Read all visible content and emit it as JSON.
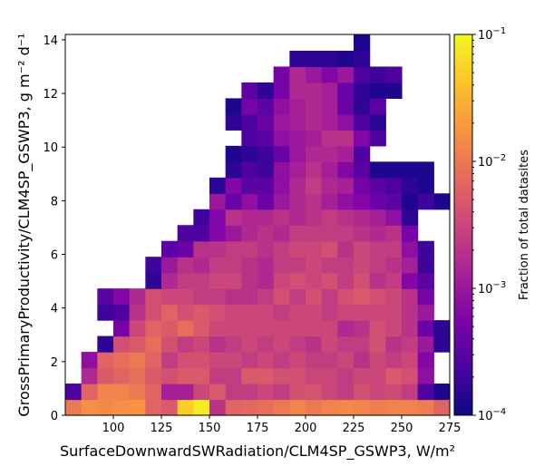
{
  "chart_data": {
    "type": "heatmap",
    "xlabel": "SurfaceDownwardSWRadiation/CLM4SP_GSWP3,  W/m²",
    "ylabel": "GrossPrimaryProductivity/CLM4SP_GSWP3,  g m⁻² d⁻¹",
    "xlim": [
      75,
      275
    ],
    "ylim": [
      0,
      14.2
    ],
    "x_ticks": [
      "100",
      "125",
      "150",
      "175",
      "200",
      "225",
      "250",
      "275"
    ],
    "y_ticks": [
      "0",
      "2",
      "4",
      "6",
      "8",
      "10",
      "12",
      "14"
    ],
    "bin_width_x": 8.333,
    "bin_width_y": 0.591,
    "n_x_bins": 24,
    "n_y_bins": 24,
    "colormap": "plasma",
    "color_scale": "log",
    "color_range": [
      0.0001,
      0.1
    ],
    "colorbar": {
      "label": "Fraction of total datasites",
      "tick_labels": [
        {
          "base": "10",
          "exp": "−4"
        },
        {
          "base": "10",
          "exp": "−3"
        },
        {
          "base": "10",
          "exp": "−2"
        },
        {
          "base": "10",
          "exp": "−1"
        }
      ]
    },
    "grid": false,
    "note_values": "log10 of fraction per bin, indexed [y_bin][x_bin]; null = empty bin",
    "values": [
      [
        -2.0,
        -1.8,
        -1.85,
        -1.8,
        -1.75,
        -2.2,
        -2.3,
        -1.3,
        -1.1,
        -2.7,
        -2.2,
        -2.15,
        -2.1,
        -2.0,
        -1.9,
        -2.0,
        -1.9,
        -1.85,
        -1.9,
        -1.95,
        -1.9,
        -1.9,
        -1.95,
        -2.2
      ],
      [
        -3.6,
        -2.2,
        -1.9,
        -1.9,
        -2.0,
        -2.2,
        -2.9,
        -2.9,
        -2.5,
        -2.3,
        -2.6,
        -2.6,
        -2.5,
        -2.6,
        -2.4,
        -2.35,
        -2.5,
        -2.6,
        -2.4,
        -2.5,
        -2.45,
        -2.6,
        -3.6,
        -3.9
      ],
      [
        null,
        -2.8,
        -2.3,
        -2.2,
        -2.1,
        -2.3,
        -2.4,
        -2.3,
        -2.3,
        -2.6,
        -2.6,
        -2.3,
        -2.3,
        -2.4,
        -2.4,
        -2.5,
        -2.5,
        -2.6,
        -2.5,
        -2.5,
        -2.3,
        -2.4,
        -3.1,
        null
      ],
      [
        null,
        -3.1,
        -2.2,
        -2.1,
        -2.0,
        -2.2,
        -2.6,
        -2.4,
        -2.4,
        -2.5,
        -2.5,
        -2.6,
        -2.5,
        -2.6,
        -2.5,
        -2.6,
        -2.6,
        -2.5,
        -2.7,
        -2.5,
        -2.6,
        -2.5,
        -3.2,
        null
      ],
      [
        null,
        null,
        -3.8,
        -2.4,
        -2.3,
        -2.1,
        -2.4,
        -2.6,
        -2.5,
        -2.7,
        -2.6,
        -2.5,
        -2.6,
        -2.5,
        -2.6,
        -2.7,
        -2.5,
        -2.6,
        -2.6,
        -2.4,
        -2.7,
        -2.6,
        -3.0,
        -3.8
      ],
      [
        null,
        null,
        null,
        -3.3,
        -2.5,
        -2.2,
        -2.3,
        -2.1,
        -2.3,
        -2.5,
        -2.5,
        -2.5,
        -2.5,
        -2.5,
        -2.5,
        -2.5,
        -2.5,
        -2.8,
        -2.7,
        -2.4,
        -2.5,
        -2.7,
        -3.4,
        -3.8
      ],
      [
        null,
        null,
        -3.7,
        -3.6,
        -2.7,
        -2.4,
        -2.2,
        -2.4,
        -2.3,
        -2.4,
        -2.5,
        -2.5,
        -2.5,
        -2.6,
        -2.5,
        -2.5,
        -2.6,
        -2.5,
        -2.5,
        -2.5,
        -2.5,
        -2.7,
        -3.0,
        null
      ],
      [
        null,
        null,
        -3.5,
        -3.2,
        -2.8,
        -2.4,
        -2.5,
        -2.5,
        -2.6,
        -2.6,
        -2.7,
        -2.7,
        -2.6,
        -2.4,
        -2.6,
        -2.4,
        -2.6,
        -2.4,
        -2.3,
        -2.4,
        -2.5,
        -2.7,
        -3.3,
        null
      ],
      [
        null,
        null,
        null,
        null,
        null,
        -3.8,
        -2.8,
        -2.6,
        -2.6,
        -2.5,
        -2.5,
        -2.7,
        -2.8,
        -2.5,
        -2.4,
        -2.5,
        -2.4,
        -2.6,
        -2.4,
        -2.7,
        -2.6,
        -3.2,
        -3.5,
        null
      ],
      [
        null,
        null,
        null,
        null,
        null,
        -3.7,
        -3.0,
        -2.7,
        -2.8,
        -2.6,
        -2.6,
        -2.7,
        -2.8,
        -2.6,
        -2.6,
        -2.5,
        -2.6,
        -2.6,
        -2.5,
        -2.6,
        -2.7,
        -2.9,
        -3.7,
        null
      ],
      [
        null,
        null,
        null,
        null,
        null,
        null,
        -3.5,
        -3.4,
        -2.7,
        -2.7,
        -2.6,
        -2.6,
        -2.7,
        -2.6,
        -2.5,
        -2.5,
        -2.4,
        -2.7,
        -2.5,
        -2.6,
        -2.6,
        -3.1,
        -3.7,
        null
      ],
      [
        null,
        null,
        null,
        null,
        null,
        null,
        null,
        -3.6,
        -3.6,
        -3.2,
        -3.0,
        -2.8,
        -2.7,
        -2.8,
        -2.6,
        -2.6,
        -2.6,
        -2.6,
        -2.7,
        -2.8,
        -2.7,
        -3.3,
        null,
        null
      ],
      [
        null,
        null,
        null,
        null,
        null,
        null,
        null,
        null,
        -3.7,
        -3.2,
        -2.7,
        -2.8,
        -2.8,
        -2.7,
        -2.8,
        -2.7,
        -2.6,
        -2.7,
        -2.8,
        -2.9,
        -3.1,
        -3.8,
        null,
        null
      ],
      [
        null,
        null,
        null,
        null,
        null,
        null,
        null,
        null,
        null,
        -3.0,
        -3.4,
        -3.1,
        -3.4,
        -3.0,
        -2.8,
        -2.7,
        -2.9,
        -3.1,
        -3.2,
        -3.4,
        -3.5,
        -3.9,
        -3.7,
        -3.9
      ],
      [
        null,
        null,
        null,
        null,
        null,
        null,
        null,
        null,
        null,
        -3.8,
        -3.2,
        -3.5,
        -3.5,
        -3.1,
        -2.8,
        -2.6,
        -2.8,
        -2.9,
        -3.3,
        -3.5,
        -3.6,
        -3.8,
        -3.9,
        null
      ],
      [
        null,
        null,
        null,
        null,
        null,
        null,
        null,
        null,
        null,
        null,
        -3.8,
        -3.6,
        -3.7,
        -3.1,
        -2.9,
        -2.7,
        -2.9,
        -3.2,
        -3.5,
        -3.9,
        -3.9,
        -3.9,
        -3.9,
        null
      ],
      [
        null,
        null,
        null,
        null,
        null,
        null,
        null,
        null,
        null,
        null,
        -3.9,
        -3.8,
        -3.7,
        -3.4,
        -3.0,
        -2.8,
        -2.8,
        -2.9,
        -3.6,
        null,
        null,
        null,
        null,
        null
      ],
      [
        null,
        null,
        null,
        null,
        null,
        null,
        null,
        null,
        null,
        null,
        null,
        -3.6,
        -3.5,
        -3.1,
        -3.0,
        -2.9,
        -2.7,
        -2.7,
        -3.2,
        -3.6,
        null,
        null,
        null,
        null
      ],
      [
        null,
        null,
        null,
        null,
        null,
        null,
        null,
        null,
        null,
        null,
        -3.8,
        -3.6,
        -3.4,
        -3.0,
        -2.9,
        -2.8,
        -2.9,
        -3.1,
        -3.6,
        -3.8,
        null,
        null,
        null,
        null
      ],
      [
        null,
        null,
        null,
        null,
        null,
        null,
        null,
        null,
        null,
        null,
        -3.9,
        -3.3,
        -3.5,
        -3.1,
        -2.9,
        -2.8,
        -2.9,
        -3.4,
        -3.8,
        -3.5,
        null,
        null,
        null,
        null
      ],
      [
        null,
        null,
        null,
        null,
        null,
        null,
        null,
        null,
        null,
        null,
        null,
        -3.5,
        -3.8,
        -3.3,
        -2.8,
        -2.8,
        -2.9,
        -3.4,
        -3.8,
        -3.9,
        -3.9,
        null,
        null,
        null
      ],
      [
        null,
        null,
        null,
        null,
        null,
        null,
        null,
        null,
        null,
        null,
        null,
        null,
        null,
        -3.3,
        -2.8,
        -3.0,
        -3.2,
        -3.0,
        -3.6,
        -3.7,
        -3.6,
        null,
        null,
        null
      ],
      [
        null,
        null,
        null,
        null,
        null,
        null,
        null,
        null,
        null,
        null,
        null,
        null,
        null,
        null,
        -3.8,
        -3.8,
        -3.8,
        -3.9,
        -3.8,
        null,
        null,
        null,
        null,
        null
      ],
      [
        null,
        null,
        null,
        null,
        null,
        null,
        null,
        null,
        null,
        null,
        null,
        null,
        null,
        null,
        null,
        null,
        null,
        null,
        -3.9,
        null,
        null,
        null,
        null,
        null
      ]
    ]
  }
}
